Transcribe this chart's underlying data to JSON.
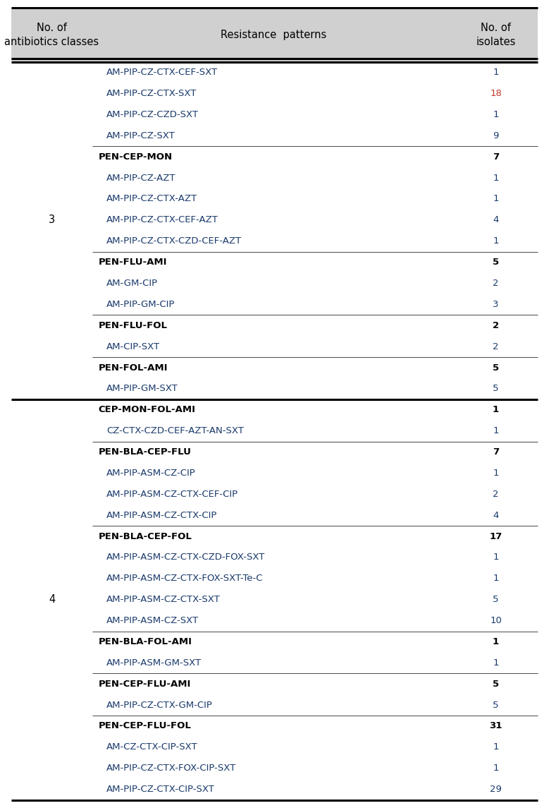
{
  "header": [
    "No. of\nantibiotics classes",
    "Resistance  patterns",
    "No. of\nisolates"
  ],
  "rows": [
    {
      "col1": "",
      "col2": "AM-PIP-CZ-CTX-CEF-SXT",
      "col3": "1",
      "bold": false,
      "line_above": false,
      "thick_above": false
    },
    {
      "col1": "",
      "col2": "AM-PIP-CZ-CTX-SXT",
      "col3": "18",
      "bold": false,
      "line_above": false,
      "thick_above": false
    },
    {
      "col1": "",
      "col2": "AM-PIP-CZ-CZD-SXT",
      "col3": "1",
      "bold": false,
      "line_above": false,
      "thick_above": false
    },
    {
      "col1": "",
      "col2": "AM-PIP-CZ-SXT",
      "col3": "9",
      "bold": false,
      "line_above": false,
      "thick_above": false
    },
    {
      "col1": "",
      "col2": "PEN-CEP-MON",
      "col3": "7",
      "bold": true,
      "line_above": true,
      "thick_above": false
    },
    {
      "col1": "",
      "col2": "AM-PIP-CZ-AZT",
      "col3": "1",
      "bold": false,
      "line_above": false,
      "thick_above": false
    },
    {
      "col1": "",
      "col2": "AM-PIP-CZ-CTX-AZT",
      "col3": "1",
      "bold": false,
      "line_above": false,
      "thick_above": false
    },
    {
      "col1": "3",
      "col2": "AM-PIP-CZ-CTX-CEF-AZT",
      "col3": "4",
      "bold": false,
      "line_above": false,
      "thick_above": false
    },
    {
      "col1": "",
      "col2": "AM-PIP-CZ-CTX-CZD-CEF-AZT",
      "col3": "1",
      "bold": false,
      "line_above": false,
      "thick_above": false
    },
    {
      "col1": "",
      "col2": "PEN-FLU-AMI",
      "col3": "5",
      "bold": true,
      "line_above": true,
      "thick_above": false
    },
    {
      "col1": "",
      "col2": "AM-GM-CIP",
      "col3": "2",
      "bold": false,
      "line_above": false,
      "thick_above": false
    },
    {
      "col1": "",
      "col2": "AM-PIP-GM-CIP",
      "col3": "3",
      "bold": false,
      "line_above": false,
      "thick_above": false
    },
    {
      "col1": "",
      "col2": "PEN-FLU-FOL",
      "col3": "2",
      "bold": true,
      "line_above": true,
      "thick_above": false
    },
    {
      "col1": "",
      "col2": "AM-CIP-SXT",
      "col3": "2",
      "bold": false,
      "line_above": false,
      "thick_above": false
    },
    {
      "col1": "",
      "col2": "PEN-FOL-AMI",
      "col3": "5",
      "bold": true,
      "line_above": true,
      "thick_above": false
    },
    {
      "col1": "",
      "col2": "AM-PIP-GM-SXT",
      "col3": "5",
      "bold": false,
      "line_above": false,
      "thick_above": false
    },
    {
      "col1": "",
      "col2": "CEP-MON-FOL-AMI",
      "col3": "1",
      "bold": true,
      "line_above": true,
      "thick_above": true
    },
    {
      "col1": "",
      "col2": "CZ-CTX-CZD-CEF-AZT-AN-SXT",
      "col3": "1",
      "bold": false,
      "line_above": false,
      "thick_above": false
    },
    {
      "col1": "",
      "col2": "PEN-BLA-CEP-FLU",
      "col3": "7",
      "bold": true,
      "line_above": true,
      "thick_above": false
    },
    {
      "col1": "",
      "col2": "AM-PIP-ASM-CZ-CIP",
      "col3": "1",
      "bold": false,
      "line_above": false,
      "thick_above": false
    },
    {
      "col1": "",
      "col2": "AM-PIP-ASM-CZ-CTX-CEF-CIP",
      "col3": "2",
      "bold": false,
      "line_above": false,
      "thick_above": false
    },
    {
      "col1": "",
      "col2": "AM-PIP-ASM-CZ-CTX-CIP",
      "col3": "4",
      "bold": false,
      "line_above": false,
      "thick_above": false
    },
    {
      "col1": "",
      "col2": "PEN-BLA-CEP-FOL",
      "col3": "17",
      "bold": true,
      "line_above": true,
      "thick_above": false
    },
    {
      "col1": "",
      "col2": "AM-PIP-ASM-CZ-CTX-CZD-FOX-SXT",
      "col3": "1",
      "bold": false,
      "line_above": false,
      "thick_above": false
    },
    {
      "col1": "",
      "col2": "AM-PIP-ASM-CZ-CTX-FOX-SXT-Te-C",
      "col3": "1",
      "bold": false,
      "line_above": false,
      "thick_above": false
    },
    {
      "col1": "4",
      "col2": "AM-PIP-ASM-CZ-CTX-SXT",
      "col3": "5",
      "bold": false,
      "line_above": false,
      "thick_above": false
    },
    {
      "col1": "",
      "col2": "AM-PIP-ASM-CZ-SXT",
      "col3": "10",
      "bold": false,
      "line_above": false,
      "thick_above": false
    },
    {
      "col1": "",
      "col2": "PEN-BLA-FOL-AMI",
      "col3": "1",
      "bold": true,
      "line_above": true,
      "thick_above": false
    },
    {
      "col1": "",
      "col2": "AM-PIP-ASM-GM-SXT",
      "col3": "1",
      "bold": false,
      "line_above": false,
      "thick_above": false
    },
    {
      "col1": "",
      "col2": "PEN-CEP-FLU-AMI",
      "col3": "5",
      "bold": true,
      "line_above": true,
      "thick_above": false
    },
    {
      "col1": "",
      "col2": "AM-PIP-CZ-CTX-GM-CIP",
      "col3": "5",
      "bold": false,
      "line_above": false,
      "thick_above": false
    },
    {
      "col1": "",
      "col2": "PEN-CEP-FLU-FOL",
      "col3": "31",
      "bold": true,
      "line_above": true,
      "thick_above": false
    },
    {
      "col1": "",
      "col2": "AM-CZ-CTX-CIP-SXT",
      "col3": "1",
      "bold": false,
      "line_above": false,
      "thick_above": false
    },
    {
      "col1": "",
      "col2": "AM-PIP-CZ-CTX-FOX-CIP-SXT",
      "col3": "1",
      "bold": false,
      "line_above": false,
      "thick_above": false
    },
    {
      "col1": "",
      "col2": "AM-PIP-CZ-CTX-CIP-SXT",
      "col3": "29",
      "bold": false,
      "line_above": false,
      "thick_above": false
    }
  ],
  "header_bg": "#d0d0d0",
  "fig_width": 7.79,
  "fig_height": 11.45,
  "font_size": 9.5,
  "header_font_size": 10.5,
  "data_color": "#1a3a6b",
  "bold_color": "#000000",
  "highlight_color": "#c0392b"
}
